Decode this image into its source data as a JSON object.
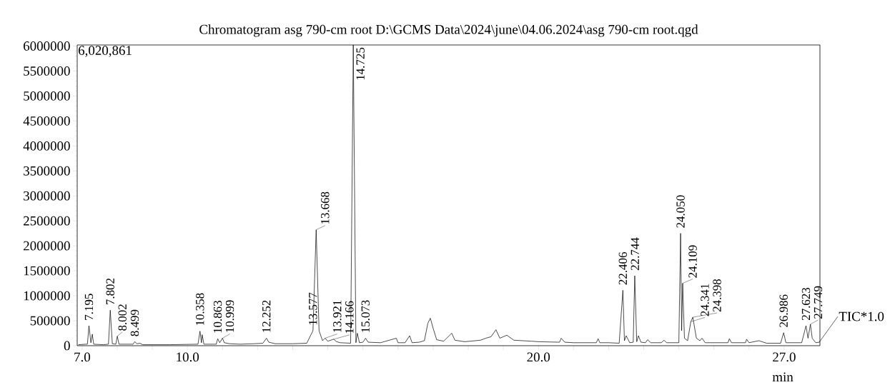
{
  "chart_data": {
    "type": "line",
    "title": "Chromatogram asg 790-cm root D:\\GCMS Data\\2024\\june\\04.06.2024\\asg 790-cm root.qgd",
    "xlabel": "min",
    "xlim": [
      6.86,
      28.02
    ],
    "ylim": [
      0,
      6020861
    ],
    "xticks": [
      {
        "value": 7,
        "label": "7.0"
      },
      {
        "value": 8,
        "label": null
      },
      {
        "value": 9,
        "label": null
      },
      {
        "value": 10,
        "label": "10.0"
      },
      {
        "value": 11,
        "label": null
      },
      {
        "value": 12,
        "label": null
      },
      {
        "value": 13,
        "label": null
      },
      {
        "value": 14,
        "label": null
      },
      {
        "value": 15,
        "label": null
      },
      {
        "value": 16,
        "label": null
      },
      {
        "value": 17,
        "label": null
      },
      {
        "value": 18,
        "label": null
      },
      {
        "value": 19,
        "label": null
      },
      {
        "value": 20,
        "label": "20.0"
      },
      {
        "value": 21,
        "label": null
      },
      {
        "value": 22,
        "label": null
      },
      {
        "value": 23,
        "label": null
      },
      {
        "value": 24,
        "label": null
      },
      {
        "value": 25,
        "label": null
      },
      {
        "value": 26,
        "label": null
      },
      {
        "value": 27,
        "label": "27.0"
      }
    ],
    "yticks": [
      0,
      500000,
      1000000,
      1500000,
      2000000,
      2500000,
      3000000,
      3500000,
      4000000,
      4500000,
      5000000,
      5500000,
      6000000
    ],
    "x": [
      6.9,
      7.1,
      7.15,
      7.195,
      7.25,
      7.29,
      7.33,
      7.6,
      7.75,
      7.802,
      7.86,
      7.96,
      8.002,
      8.05,
      8.45,
      8.499,
      8.56,
      8.65,
      8.72,
      9.5,
      10.3,
      10.358,
      10.4,
      10.42,
      10.47,
      10.82,
      10.863,
      10.92,
      10.999,
      11.05,
      11.2,
      11.5,
      11.9,
      12.15,
      12.252,
      12.32,
      12.5,
      13.0,
      13.4,
      13.577,
      13.668,
      13.75,
      13.85,
      13.921,
      14.0,
      14.166,
      14.25,
      14.35,
      14.65,
      14.725,
      14.8,
      14.84,
      14.9,
      15.0,
      15.073,
      15.15,
      15.5,
      15.95,
      16.0,
      16.2,
      16.33,
      16.4,
      16.6,
      16.75,
      16.85,
      16.92,
      17.0,
      17.1,
      17.3,
      17.53,
      17.62,
      17.9,
      18.35,
      18.5,
      18.65,
      18.79,
      18.9,
      19.1,
      19.3,
      19.8,
      20.0,
      20.6,
      20.65,
      20.75,
      21.0,
      21.65,
      21.7,
      21.75,
      22.0,
      22.3,
      22.406,
      22.45,
      22.5,
      22.6,
      22.7,
      22.744,
      22.8,
      22.85,
      22.92,
      23.05,
      23.11,
      23.2,
      23.5,
      23.58,
      23.65,
      24.0,
      24.05,
      24.08,
      24.109,
      24.16,
      24.25,
      24.341,
      24.398,
      24.5,
      24.6,
      24.66,
      24.75,
      25.4,
      25.44,
      25.5,
      25.9,
      25.93,
      26.0,
      26.28,
      26.5,
      26.9,
      26.986,
      27.05,
      27.5,
      27.623,
      27.68,
      27.749,
      27.8,
      27.9,
      28.0
    ],
    "series": [
      {
        "name": "TIC*1.0",
        "color": "#000000",
        "values": [
          20000,
          30000,
          30000,
          400000,
          60000,
          230000,
          30000,
          20000,
          30000,
          710000,
          40000,
          30000,
          190000,
          30000,
          30000,
          80000,
          40000,
          50000,
          20000,
          20000,
          30000,
          290000,
          60000,
          220000,
          30000,
          30000,
          140000,
          60000,
          150000,
          60000,
          40000,
          30000,
          40000,
          50000,
          150000,
          70000,
          40000,
          40000,
          50000,
          300000,
          2320000,
          300000,
          100000,
          150000,
          90000,
          130000,
          80000,
          60000,
          50000,
          6020861,
          60000,
          250000,
          60000,
          70000,
          150000,
          70000,
          60000,
          150000,
          60000,
          60000,
          200000,
          60000,
          70000,
          100000,
          450000,
          550000,
          350000,
          120000,
          90000,
          250000,
          110000,
          80000,
          110000,
          150000,
          180000,
          320000,
          150000,
          210000,
          110000,
          90000,
          80000,
          70000,
          150000,
          70000,
          60000,
          60000,
          140000,
          60000,
          60000,
          50000,
          1110000,
          100000,
          200000,
          60000,
          70000,
          1400000,
          80000,
          200000,
          70000,
          60000,
          120000,
          60000,
          60000,
          110000,
          60000,
          60000,
          2250000,
          300000,
          1250000,
          150000,
          100000,
          480000,
          570000,
          150000,
          100000,
          150000,
          60000,
          60000,
          140000,
          60000,
          60000,
          130000,
          60000,
          100000,
          50000,
          50000,
          260000,
          60000,
          60000,
          400000,
          150000,
          430000,
          150000,
          60000,
          70000
        ]
      }
    ],
    "annotations": [
      "6,020,861",
      {
        "text": "7.195",
        "x": 7.195,
        "y": 400000
      },
      {
        "text": "7.802",
        "x": 7.802,
        "y": 710000
      },
      {
        "text": "8.002",
        "x": 8.002,
        "y": 190000
      },
      {
        "text": "8.499",
        "x": 8.499,
        "y": 80000
      },
      {
        "text": "10.358",
        "x": 10.358,
        "y": 290000
      },
      {
        "text": "10.863",
        "x": 10.863,
        "y": 140000
      },
      {
        "text": "10.999",
        "x": 10.999,
        "y": 150000
      },
      {
        "text": "12.252",
        "x": 12.252,
        "y": 150000
      },
      {
        "text": "13.577",
        "x": 13.577,
        "y": 300000
      },
      {
        "text": "13.668",
        "x": 13.668,
        "y": 2320000
      },
      {
        "text": "13.921",
        "x": 13.921,
        "y": 150000
      },
      {
        "text": "14.166",
        "x": 14.166,
        "y": 130000
      },
      {
        "text": "14.725",
        "x": 14.725,
        "y": 6020861
      },
      {
        "text": "15.073",
        "x": 15.073,
        "y": 150000
      },
      {
        "text": "22.406",
        "x": 22.406,
        "y": 1110000
      },
      {
        "text": "22.744",
        "x": 22.744,
        "y": 1400000
      },
      {
        "text": "24.050",
        "x": 24.05,
        "y": 2250000
      },
      {
        "text": "24.109",
        "x": 24.109,
        "y": 1250000
      },
      {
        "text": "24.341",
        "x": 24.341,
        "y": 480000
      },
      {
        "text": "24.398",
        "x": 24.398,
        "y": 570000
      },
      {
        "text": "26.986",
        "x": 26.986,
        "y": 260000
      },
      {
        "text": "27.623",
        "x": 27.623,
        "y": 400000
      },
      {
        "text": "27.749",
        "x": 27.749,
        "y": 430000
      }
    ]
  }
}
